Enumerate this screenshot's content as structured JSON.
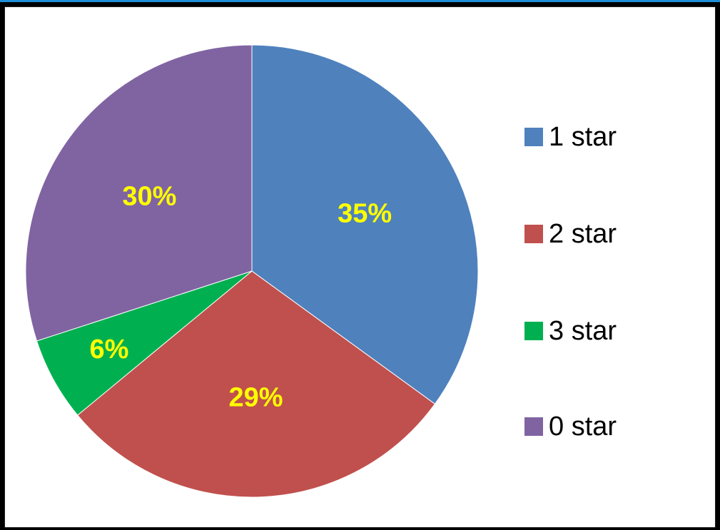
{
  "chart_data": {
    "type": "pie",
    "categories": [
      "1 star",
      "2 star",
      "3 star",
      "0 star"
    ],
    "values": [
      35,
      29,
      6,
      30
    ],
    "labels": [
      "35%",
      "29%",
      "6%",
      "30%"
    ],
    "colors": [
      "#4f81bd",
      "#c0504d",
      "#00b050",
      "#8064a2"
    ],
    "label_color": "#ffff00",
    "legend_position": "right",
    "start_angle": "12 o'clock, clockwise"
  }
}
